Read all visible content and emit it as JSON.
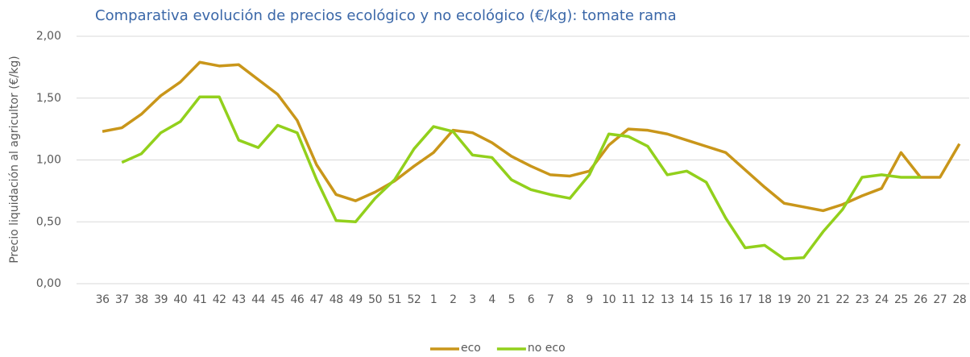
{
  "chart_data": {
    "type": "line",
    "title": "Comparativa evolución de precios ecológico y no ecológico (€/kg): tomate rama",
    "y_label": "Precio liquidación al agricultor (€/kg)",
    "categories": [
      "36",
      "37",
      "38",
      "39",
      "40",
      "41",
      "42",
      "43",
      "44",
      "45",
      "46",
      "47",
      "48",
      "49",
      "50",
      "51",
      "52",
      "1",
      "2",
      "3",
      "4",
      "5",
      "6",
      "7",
      "8",
      "9",
      "10",
      "11",
      "12",
      "13",
      "14",
      "15",
      "16",
      "17",
      "18",
      "19",
      "20",
      "21",
      "22",
      "23",
      "24",
      "25",
      "26",
      "27",
      "28"
    ],
    "series": [
      {
        "name": "eco",
        "color": "#c9961a",
        "values": [
          1.23,
          1.26,
          1.37,
          1.52,
          1.63,
          1.79,
          1.76,
          1.77,
          1.65,
          1.53,
          1.32,
          0.96,
          0.72,
          0.67,
          0.74,
          0.83,
          0.95,
          1.06,
          1.24,
          1.22,
          1.14,
          1.03,
          0.95,
          0.88,
          0.87,
          0.91,
          1.12,
          1.25,
          1.24,
          1.21,
          1.16,
          1.11,
          1.06,
          0.92,
          0.78,
          0.65,
          0.62,
          0.59,
          0.64,
          0.71,
          0.77,
          1.06,
          0.86,
          0.86,
          1.13
        ]
      },
      {
        "name": "no eco",
        "color": "#92d01c",
        "values": [
          null,
          0.98,
          1.05,
          1.22,
          1.31,
          1.51,
          1.51,
          1.16,
          1.1,
          1.28,
          1.22,
          0.84,
          0.51,
          0.5,
          0.69,
          0.84,
          1.09,
          1.27,
          1.23,
          1.04,
          1.02,
          0.84,
          0.76,
          0.72,
          0.69,
          0.88,
          1.21,
          1.19,
          1.11,
          0.88,
          0.91,
          0.82,
          0.53,
          0.29,
          0.31,
          0.2,
          0.21,
          0.42,
          0.6,
          0.86,
          0.88,
          0.86,
          0.86,
          null,
          null
        ]
      }
    ],
    "ylim": [
      0,
      2
    ],
    "yticks": [
      {
        "value": 0,
        "label": "0,00"
      },
      {
        "value": 0.5,
        "label": "0,50"
      },
      {
        "value": 1,
        "label": "1,00"
      },
      {
        "value": 1.5,
        "label": "1,50"
      },
      {
        "value": 2,
        "label": "2,00"
      }
    ],
    "grid": true,
    "legend": "bottom"
  }
}
